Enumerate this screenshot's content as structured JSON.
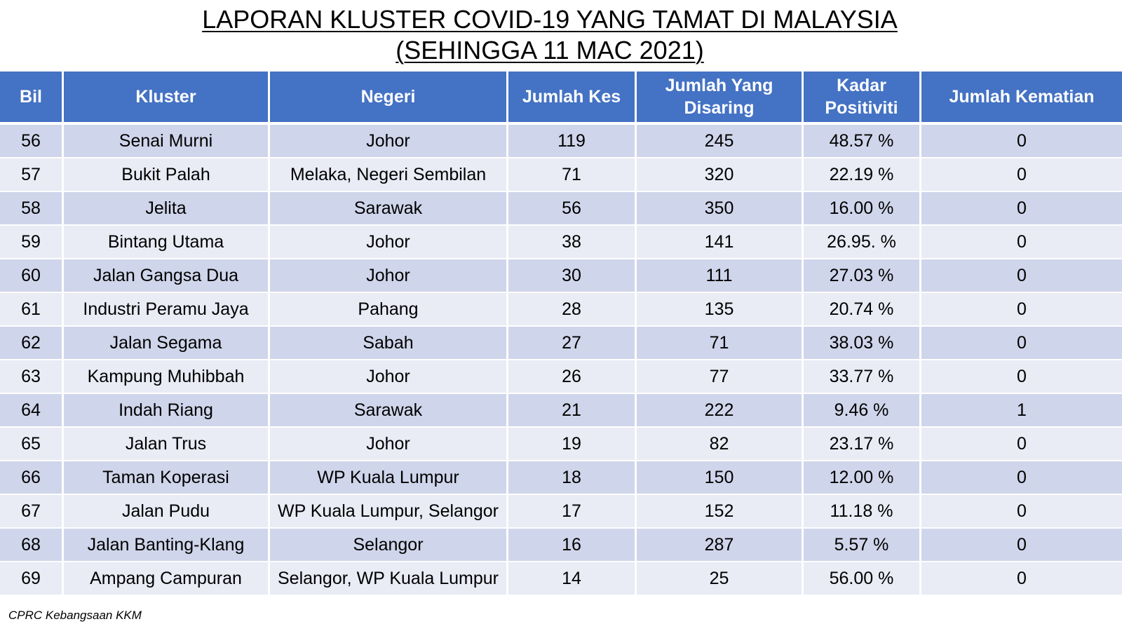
{
  "title": {
    "line1": "LAPORAN KLUSTER COVID-19 YANG TAMAT DI MALAYSIA",
    "line2": "(SEHINGGA  11 MAC 2021)"
  },
  "table": {
    "headers": {
      "bil": "Bil",
      "kluster": "Kluster",
      "negeri": "Negeri",
      "jumlah_kes": "Jumlah Kes",
      "jumlah_disaring_line1": "Jumlah Yang",
      "jumlah_disaring_line2": "Disaring",
      "kadar_line1": "Kadar",
      "kadar_line2": "Positiviti",
      "jumlah_kematian": "Jumlah Kematian"
    },
    "rows": [
      {
        "bil": "56",
        "kluster": "Senai Murni",
        "negeri": "Johor",
        "kes": "119",
        "disaring": "245",
        "kadar": "48.57 %",
        "kematian": "0"
      },
      {
        "bil": "57",
        "kluster": "Bukit Palah",
        "negeri": "Melaka, Negeri Sembilan",
        "kes": "71",
        "disaring": "320",
        "kadar": "22.19 %",
        "kematian": "0"
      },
      {
        "bil": "58",
        "kluster": "Jelita",
        "negeri": "Sarawak",
        "kes": "56",
        "disaring": "350",
        "kadar": "16.00 %",
        "kematian": "0"
      },
      {
        "bil": "59",
        "kluster": "Bintang Utama",
        "negeri": "Johor",
        "kes": "38",
        "disaring": "141",
        "kadar": "26.95. %",
        "kematian": "0"
      },
      {
        "bil": "60",
        "kluster": "Jalan Gangsa Dua",
        "negeri": "Johor",
        "kes": "30",
        "disaring": "111",
        "kadar": "27.03 %",
        "kematian": "0"
      },
      {
        "bil": "61",
        "kluster": "Industri Peramu Jaya",
        "negeri": "Pahang",
        "kes": "28",
        "disaring": "135",
        "kadar": "20.74 %",
        "kematian": "0"
      },
      {
        "bil": "62",
        "kluster": "Jalan Segama",
        "negeri": "Sabah",
        "kes": "27",
        "disaring": "71",
        "kadar": "38.03 %",
        "kematian": "0"
      },
      {
        "bil": "63",
        "kluster": "Kampung Muhibbah",
        "negeri": "Johor",
        "kes": "26",
        "disaring": "77",
        "kadar": "33.77 %",
        "kematian": "0"
      },
      {
        "bil": "64",
        "kluster": "Indah Riang",
        "negeri": "Sarawak",
        "kes": "21",
        "disaring": "222",
        "kadar": "9.46 %",
        "kematian": "1"
      },
      {
        "bil": "65",
        "kluster": "Jalan Trus",
        "negeri": "Johor",
        "kes": "19",
        "disaring": "82",
        "kadar": "23.17 %",
        "kematian": "0"
      },
      {
        "bil": "66",
        "kluster": "Taman Koperasi",
        "negeri": "WP Kuala Lumpur",
        "kes": "18",
        "disaring": "150",
        "kadar": "12.00 %",
        "kematian": "0"
      },
      {
        "bil": "67",
        "kluster": "Jalan Pudu",
        "negeri": "WP Kuala Lumpur, Selangor",
        "kes": "17",
        "disaring": "152",
        "kadar": "11.18 %",
        "kematian": "0"
      },
      {
        "bil": "68",
        "kluster": "Jalan Banting-Klang",
        "negeri": "Selangor",
        "kes": "16",
        "disaring": "287",
        "kadar": "5.57 %",
        "kematian": "0"
      },
      {
        "bil": "69",
        "kluster": "Ampang Campuran",
        "negeri": "Selangor, WP Kuala Lumpur",
        "kes": "14",
        "disaring": "25",
        "kadar": "56.00 %",
        "kematian": "0"
      }
    ]
  },
  "source": "CPRC Kebangsaan KKM",
  "colors": {
    "header_bg": "#4472c4",
    "row_dark": "#cfd5ea",
    "row_light": "#e9ebf5"
  }
}
